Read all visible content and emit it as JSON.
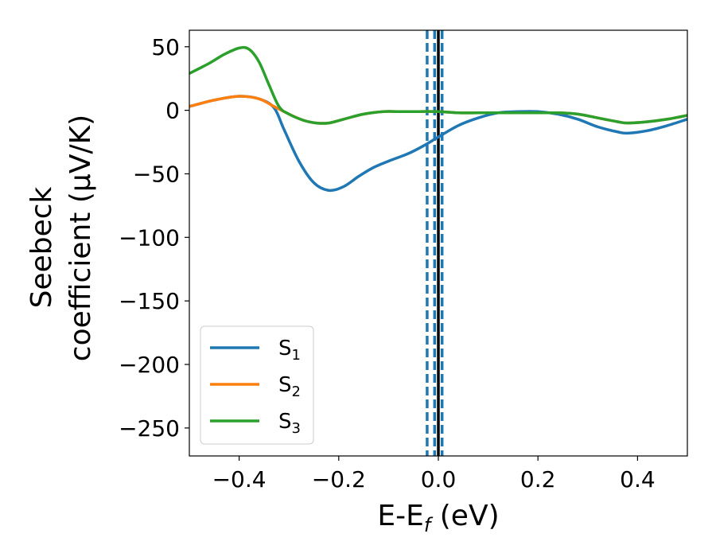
{
  "chart_data": {
    "type": "line",
    "title": "",
    "xlabel": "E-E",
    "xlabel_sub": "f",
    "xlabel_unit": "(eV)",
    "ylabel_line1": "Seebeck",
    "ylabel_line2": "coefficient  (μV/K)",
    "xlim": [
      -0.5,
      0.5
    ],
    "ylim": [
      -272,
      63
    ],
    "x_ticks": [
      -0.4,
      -0.2,
      0.0,
      0.2,
      0.4
    ],
    "x_tick_labels": [
      "−0.4",
      "−0.2",
      "0.0",
      "0.2",
      "0.4"
    ],
    "y_ticks": [
      50,
      0,
      -50,
      -100,
      -150,
      -200,
      -250
    ],
    "y_tick_labels": [
      "50",
      "0",
      "−50",
      "−100",
      "−150",
      "−200",
      "−250"
    ],
    "grid": false,
    "legend_position": "lower-left",
    "vertical_lines": [
      {
        "x": -0.0225,
        "style": "dashed",
        "color": "#1f77b4"
      },
      {
        "x": -0.0075,
        "style": "dashed",
        "color": "#1f77b4"
      },
      {
        "x": 0.0075,
        "style": "dashed",
        "color": "#1f77b4"
      },
      {
        "x": 0.0,
        "style": "solid",
        "color": "#000000"
      }
    ],
    "series": [
      {
        "name": "S",
        "name_sub": "1",
        "color": "#1f77b4",
        "x": [
          -0.5,
          -0.45,
          -0.4,
          -0.36,
          -0.33,
          -0.31,
          -0.28,
          -0.25,
          -0.22,
          -0.19,
          -0.16,
          -0.13,
          -0.1,
          -0.06,
          -0.03,
          0.0,
          0.04,
          0.08,
          0.12,
          0.16,
          0.2,
          0.24,
          0.28,
          0.32,
          0.36,
          0.38,
          0.42,
          0.46,
          0.5
        ],
        "y": [
          3,
          8,
          11,
          9,
          2,
          -15,
          -40,
          -57,
          -63,
          -60,
          -52,
          -45,
          -40,
          -34,
          -28,
          -21,
          -12,
          -6,
          -2,
          -1,
          -1,
          -3,
          -7,
          -13,
          -17,
          -18,
          -16,
          -12,
          -7
        ]
      },
      {
        "name": "S",
        "name_sub": "2",
        "color": "#ff7f0e",
        "x": [
          -0.5,
          -0.45,
          -0.4,
          -0.36,
          -0.33,
          -0.3,
          -0.27,
          -0.245,
          -0.22,
          -0.19,
          -0.15,
          -0.11,
          -0.08,
          -0.04,
          0.0,
          0.04,
          0.08,
          0.12,
          0.16,
          0.2,
          0.24,
          0.28,
          0.32,
          0.36,
          0.38,
          0.42,
          0.46,
          0.5
        ],
        "y": [
          3,
          8,
          11,
          9,
          3,
          -3,
          -8,
          -10,
          -10,
          -7,
          -3,
          -1,
          -1,
          -1,
          -1,
          -2,
          -2,
          -2,
          -2,
          -2,
          -2,
          -3,
          -6,
          -9,
          -10,
          -9,
          -7,
          -4
        ]
      },
      {
        "name": "S",
        "name_sub": "3",
        "color": "#2ca02c",
        "x": [
          -0.5,
          -0.46,
          -0.43,
          -0.4,
          -0.38,
          -0.36,
          -0.34,
          -0.32,
          -0.3,
          -0.27,
          -0.245,
          -0.22,
          -0.19,
          -0.15,
          -0.11,
          -0.08,
          -0.04,
          0.0,
          0.04,
          0.08,
          0.12,
          0.16,
          0.2,
          0.24,
          0.28,
          0.32,
          0.36,
          0.38,
          0.42,
          0.46,
          0.5
        ],
        "y": [
          29,
          37,
          44,
          49,
          48,
          38,
          20,
          3,
          -3,
          -8,
          -10,
          -10,
          -7,
          -3,
          -1,
          -1,
          -1,
          -1,
          -2,
          -2,
          -2,
          -2,
          -2,
          -2,
          -3,
          -6,
          -9,
          -10,
          -9,
          -7,
          -4
        ]
      }
    ]
  }
}
